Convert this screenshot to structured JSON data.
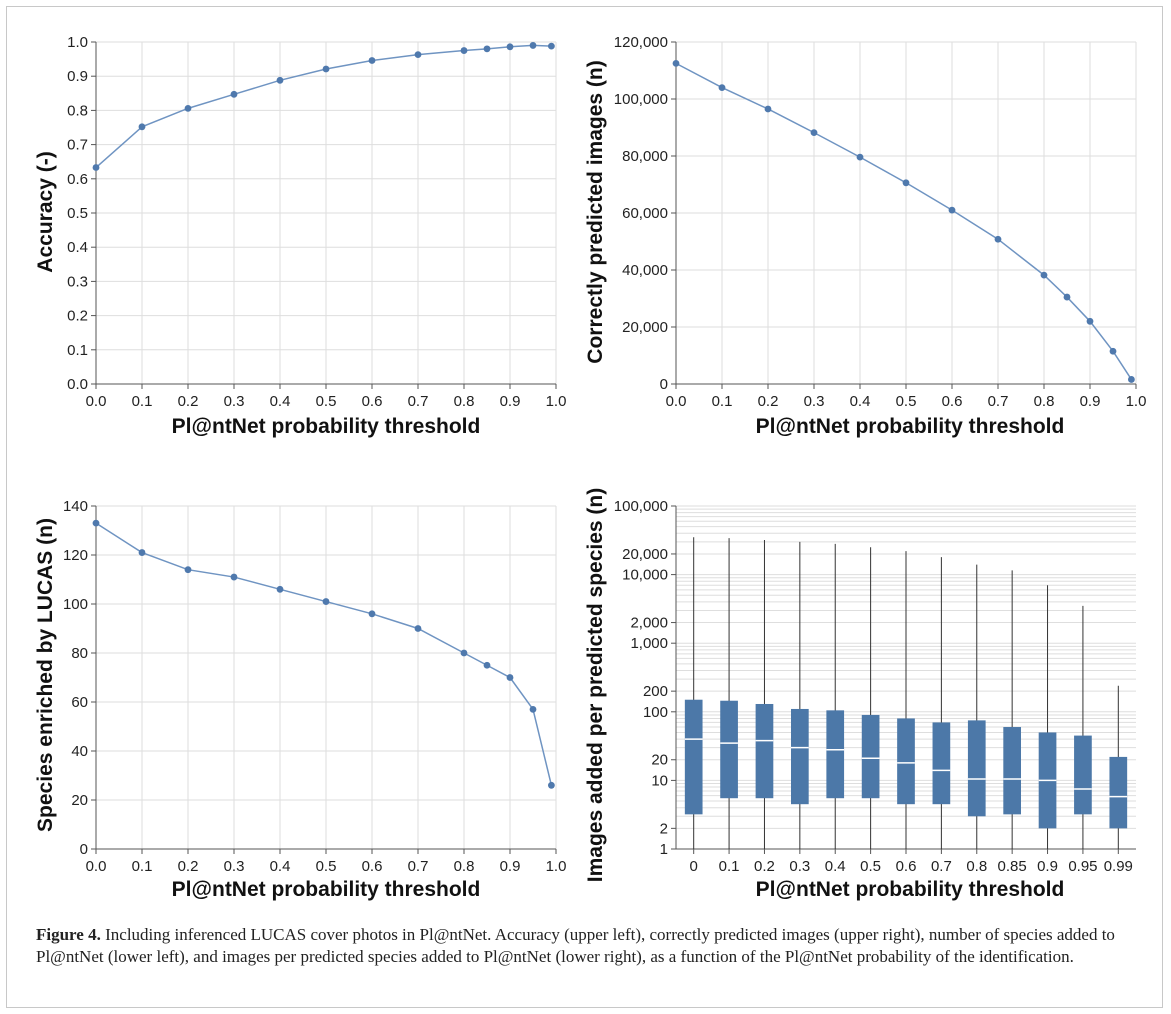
{
  "caption": {
    "label": "Figure 4.",
    "text": "Including inferenced LUCAS cover photos in Pl@ntNet. Accuracy (upper left), correctly predicted images (upper right), number of species added to Pl@ntNet (lower left), and images per predicted species added to Pl@ntNet (lower right), as a function of the Pl@ntNet probability of the identification."
  },
  "colors": {
    "line": "#6f94c2",
    "marker": "#4f79ad",
    "box": "#4c78a8",
    "grid": "#dedede"
  },
  "chart_data": [
    {
      "id": "accuracy",
      "type": "line",
      "xlabel": "Pl@ntNet probability threshold",
      "ylabel": "Accuracy (-)",
      "xlim": [
        0,
        1
      ],
      "ylim": [
        0,
        1
      ],
      "xticks": [
        0.0,
        0.1,
        0.2,
        0.3,
        0.4,
        0.5,
        0.6,
        0.7,
        0.8,
        0.9,
        1.0
      ],
      "xtick_labels": [
        "0.0",
        "0.1",
        "0.2",
        "0.3",
        "0.4",
        "0.5",
        "0.6",
        "0.7",
        "0.8",
        "0.9",
        "1.0"
      ],
      "yticks": [
        0.0,
        0.1,
        0.2,
        0.3,
        0.4,
        0.5,
        0.6,
        0.7,
        0.8,
        0.9,
        1.0
      ],
      "ytick_labels": [
        "0.0",
        "0.1",
        "0.2",
        "0.3",
        "0.4",
        "0.5",
        "0.6",
        "0.7",
        "0.8",
        "0.9",
        "1.0"
      ],
      "grid": true,
      "x": [
        0.0,
        0.1,
        0.2,
        0.3,
        0.4,
        0.5,
        0.6,
        0.7,
        0.8,
        0.85,
        0.9,
        0.95,
        0.99
      ],
      "y": [
        0.633,
        0.752,
        0.806,
        0.847,
        0.888,
        0.921,
        0.946,
        0.963,
        0.975,
        0.98,
        0.986,
        0.99,
        0.988
      ]
    },
    {
      "id": "correct-images",
      "type": "line",
      "xlabel": "Pl@ntNet probability threshold",
      "ylabel": "Correctly predicted images (n)",
      "xlim": [
        0,
        1
      ],
      "ylim": [
        0,
        120000
      ],
      "xticks": [
        0.0,
        0.1,
        0.2,
        0.3,
        0.4,
        0.5,
        0.6,
        0.7,
        0.8,
        0.9,
        1.0
      ],
      "xtick_labels": [
        "0.0",
        "0.1",
        "0.2",
        "0.3",
        "0.4",
        "0.5",
        "0.6",
        "0.7",
        "0.8",
        "0.9",
        "1.0"
      ],
      "yticks": [
        0,
        20000,
        40000,
        60000,
        80000,
        100000,
        120000
      ],
      "ytick_labels": [
        "0",
        "20,000",
        "40,000",
        "60,000",
        "80,000",
        "100,000",
        "120,000"
      ],
      "grid": true,
      "x": [
        0.0,
        0.1,
        0.2,
        0.3,
        0.4,
        0.5,
        0.6,
        0.7,
        0.8,
        0.85,
        0.9,
        0.95,
        0.99
      ],
      "y": [
        112500,
        104000,
        96500,
        88200,
        79600,
        70600,
        61000,
        50800,
        38200,
        30500,
        22000,
        11500,
        1600
      ]
    },
    {
      "id": "species-enriched",
      "type": "line",
      "xlabel": "Pl@ntNet probability threshold",
      "ylabel": "Species enriched by LUCAS (n)",
      "xlim": [
        0,
        1
      ],
      "ylim": [
        0,
        140
      ],
      "xticks": [
        0.0,
        0.1,
        0.2,
        0.3,
        0.4,
        0.5,
        0.6,
        0.7,
        0.8,
        0.9,
        1.0
      ],
      "xtick_labels": [
        "0.0",
        "0.1",
        "0.2",
        "0.3",
        "0.4",
        "0.5",
        "0.6",
        "0.7",
        "0.8",
        "0.9",
        "1.0"
      ],
      "yticks": [
        0,
        20,
        40,
        60,
        80,
        100,
        120,
        140
      ],
      "ytick_labels": [
        "0",
        "20",
        "40",
        "60",
        "80",
        "100",
        "120",
        "140"
      ],
      "grid": true,
      "x": [
        0.0,
        0.1,
        0.2,
        0.3,
        0.4,
        0.5,
        0.6,
        0.7,
        0.8,
        0.85,
        0.9,
        0.95,
        0.99
      ],
      "y": [
        133,
        121,
        114,
        111,
        106,
        101,
        96,
        90,
        80,
        75,
        70,
        57,
        26
      ]
    },
    {
      "id": "images-per-species",
      "type": "box",
      "xlabel": "Pl@ntNet probability threshold",
      "ylabel": "Images added per predicted species (n)",
      "yscale": "log",
      "ylim": [
        1,
        100000
      ],
      "yticks": [
        1,
        2,
        10,
        20,
        100,
        200,
        1000,
        2000,
        10000,
        20000,
        100000
      ],
      "ytick_labels": [
        "1",
        "2",
        "10",
        "20",
        "100",
        "200",
        "1,000",
        "2,000",
        "10,000",
        "20,000",
        "100,000"
      ],
      "grid": true,
      "categories": [
        "0",
        "0.1",
        "0.2",
        "0.3",
        "0.4",
        "0.5",
        "0.6",
        "0.7",
        "0.8",
        "0.85",
        "0.9",
        "0.95",
        "0.99"
      ],
      "boxes": [
        {
          "min": 1,
          "q1": 3.2,
          "median": 40,
          "q3": 150,
          "max": 35000
        },
        {
          "min": 1,
          "q1": 5.5,
          "median": 35,
          "q3": 145,
          "max": 34000
        },
        {
          "min": 1,
          "q1": 5.5,
          "median": 38,
          "q3": 130,
          "max": 32000
        },
        {
          "min": 1,
          "q1": 4.5,
          "median": 30,
          "q3": 110,
          "max": 30000
        },
        {
          "min": 1,
          "q1": 5.5,
          "median": 28,
          "q3": 105,
          "max": 28000
        },
        {
          "min": 1,
          "q1": 5.5,
          "median": 21,
          "q3": 90,
          "max": 25000
        },
        {
          "min": 1,
          "q1": 4.5,
          "median": 18,
          "q3": 80,
          "max": 22000
        },
        {
          "min": 1,
          "q1": 4.5,
          "median": 14,
          "q3": 70,
          "max": 18000
        },
        {
          "min": 1,
          "q1": 3,
          "median": 10.5,
          "q3": 75,
          "max": 14000
        },
        {
          "min": 1,
          "q1": 3.2,
          "median": 10.5,
          "q3": 60,
          "max": 11500
        },
        {
          "min": 1,
          "q1": 2,
          "median": 10,
          "q3": 50,
          "max": 7000
        },
        {
          "min": 1,
          "q1": 3.2,
          "median": 7.5,
          "q3": 45,
          "max": 3500
        },
        {
          "min": 1,
          "q1": 2,
          "median": 5.8,
          "q3": 22,
          "max": 240
        }
      ]
    }
  ]
}
